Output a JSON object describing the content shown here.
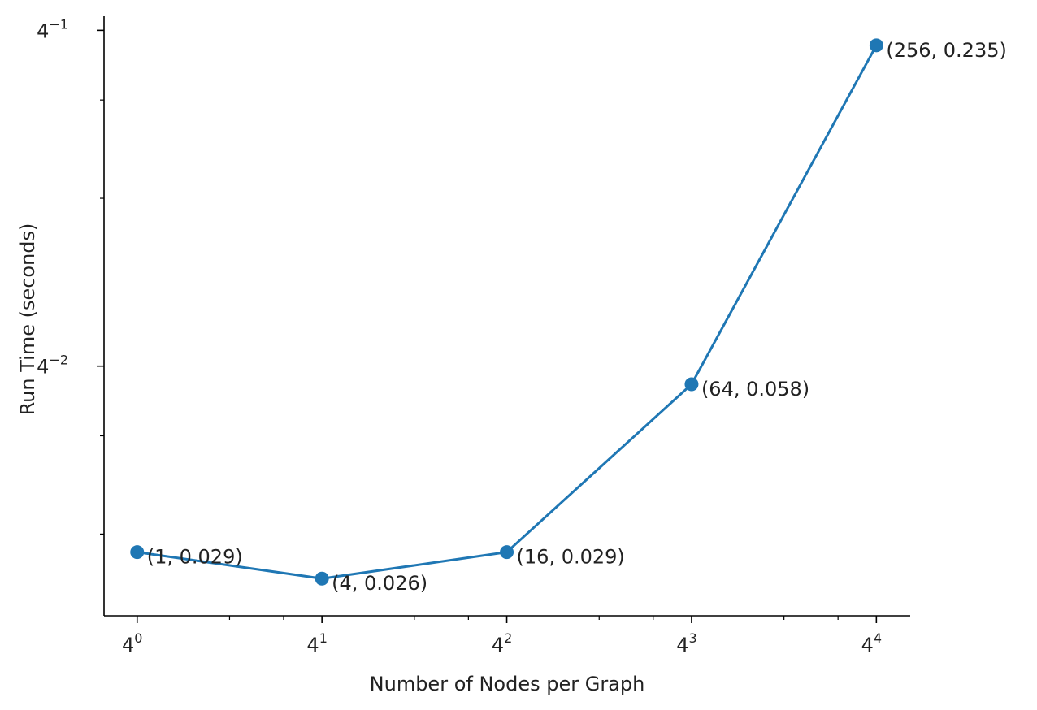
{
  "chart_data": {
    "type": "line",
    "title": "",
    "xlabel": "Number of Nodes per Graph",
    "ylabel": "Run Time (seconds)",
    "x_scale": "log4",
    "y_scale": "log4",
    "xlim": [
      0.78,
      330
    ],
    "ylim": [
      0.0223,
      0.265
    ],
    "x_ticks": [
      {
        "value": 1,
        "base": "4",
        "exp": "0"
      },
      {
        "value": 4,
        "base": "4",
        "exp": "1"
      },
      {
        "value": 16,
        "base": "4",
        "exp": "2"
      },
      {
        "value": 64,
        "base": "4",
        "exp": "3"
      },
      {
        "value": 256,
        "base": "4",
        "exp": "4"
      }
    ],
    "y_ticks": [
      {
        "value": 0.0625,
        "base": "4",
        "exp": "−2"
      },
      {
        "value": 0.25,
        "base": "4",
        "exp": "−1"
      }
    ],
    "grid": false,
    "color": "#1f77b4",
    "series": [
      {
        "x": [
          1,
          4,
          16,
          64,
          256
        ],
        "y": [
          0.029,
          0.026,
          0.029,
          0.058,
          0.235
        ],
        "labels": [
          "(1, 0.029)",
          "(4, 0.026)",
          "(16, 0.029)",
          "(64, 0.058)",
          "(256, 0.235)"
        ]
      }
    ]
  }
}
